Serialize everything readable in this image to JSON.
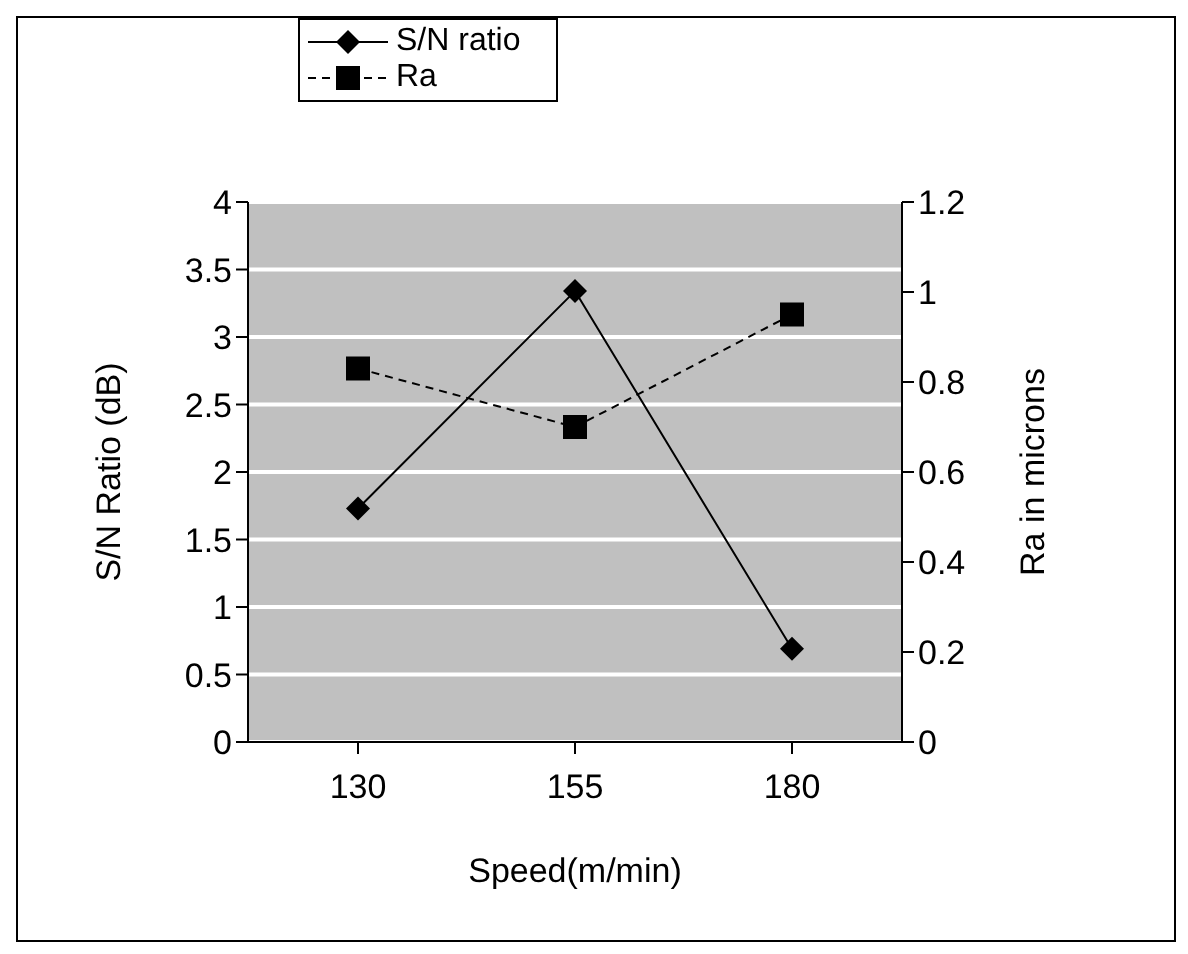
{
  "chart_data": {
    "type": "line",
    "xlabel": "Speed(m/min)",
    "ylabel": "S/N Ratio (dB)",
    "y2label": "Ra in microns",
    "categories": [
      "130",
      "155",
      "180"
    ],
    "series": [
      {
        "name": "S/N ratio",
        "color": "#000000",
        "values": [
          1.73,
          3.34,
          0.69
        ],
        "marker": "diamond",
        "line_style": "solid"
      },
      {
        "name": "Ra",
        "color": "#000000",
        "values": [
          0.83,
          0.7,
          0.95
        ],
        "axis": "y2",
        "marker": "square",
        "line_style": "dashed"
      }
    ],
    "ylim": [
      0,
      4
    ],
    "yticks": [
      0,
      0.5,
      1,
      1.5,
      2,
      2.5,
      3,
      3.5,
      4
    ],
    "y2lim": [
      0,
      1.2
    ],
    "y2ticks": [
      0,
      0.2,
      0.4,
      0.6,
      0.8,
      1,
      1.2
    ],
    "grid": "y",
    "legend": "top left"
  }
}
